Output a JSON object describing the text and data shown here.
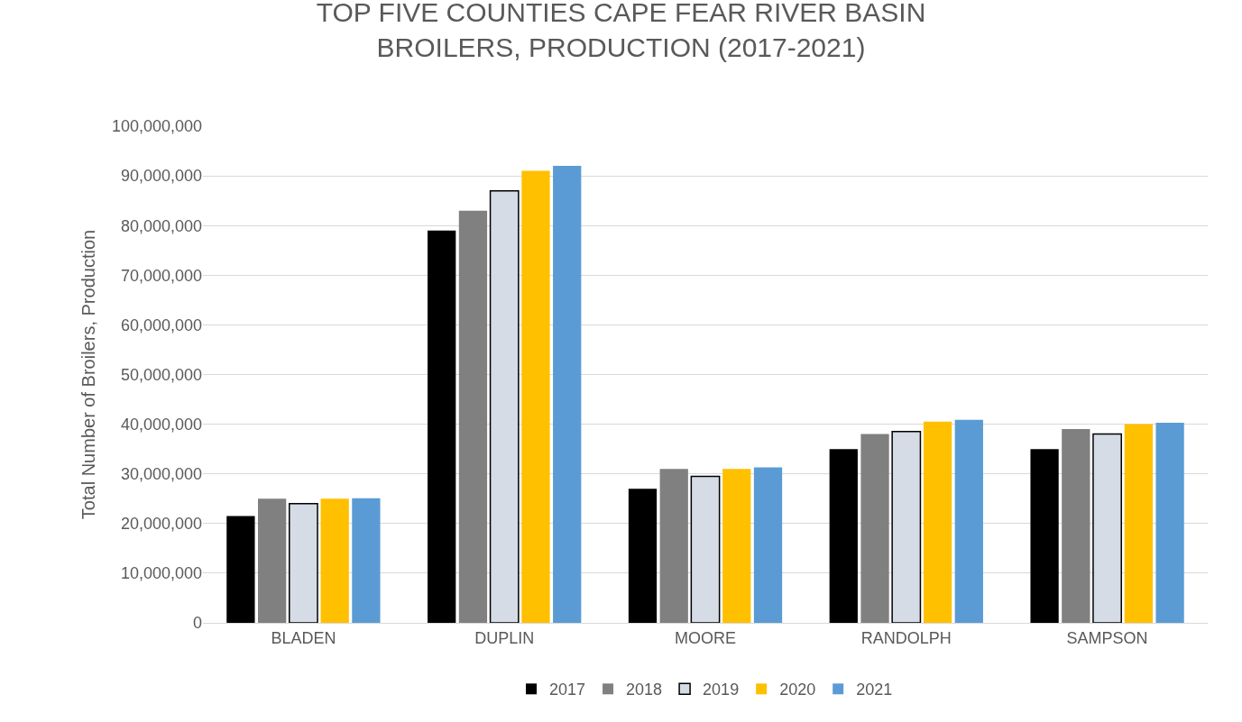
{
  "chart_data": {
    "type": "bar",
    "title": "TOP FIVE COUNTIES CAPE FEAR RIVER BASIN\nBROILERS, PRODUCTION (2017-2021)",
    "ylabel": "Total Number of Broilers, Production",
    "categories": [
      "BLADEN",
      "DUPLIN",
      "MOORE",
      "RANDOLPH",
      "SAMPSON"
    ],
    "series": [
      {
        "name": "2017",
        "color": "#000000",
        "values": [
          21500000,
          79000000,
          27000000,
          35000000,
          35000000
        ]
      },
      {
        "name": "2018",
        "color": "#808080",
        "values": [
          25000000,
          83000000,
          31000000,
          38000000,
          39000000
        ]
      },
      {
        "name": "2019",
        "color": "#d6dce5",
        "values": [
          24000000,
          87000000,
          29500000,
          38500000,
          38000000
        ]
      },
      {
        "name": "2020",
        "color": "#ffc000",
        "values": [
          25000000,
          91000000,
          31000000,
          40500000,
          40000000
        ]
      },
      {
        "name": "2021",
        "color": "#5b9bd5",
        "values": [
          25100000,
          92000000,
          31300000,
          40900000,
          40300000
        ]
      }
    ],
    "ylim": [
      0,
      100000000
    ],
    "yticks": [
      {
        "value": 0,
        "label": "0"
      },
      {
        "value": 10000000,
        "label": "10,000,000"
      },
      {
        "value": 20000000,
        "label": "20,000,000"
      },
      {
        "value": 30000000,
        "label": "30,000,000"
      },
      {
        "value": 40000000,
        "label": "40,000,000"
      },
      {
        "value": 50000000,
        "label": "50,000,000"
      },
      {
        "value": 60000000,
        "label": "60,000,000"
      },
      {
        "value": 70000000,
        "label": "70,000,000"
      },
      {
        "value": 80000000,
        "label": "80,000,000"
      },
      {
        "value": 90000000,
        "label": "90,000,000"
      },
      {
        "value": 100000000,
        "label": "100,000,000"
      }
    ],
    "grid": "y",
    "legend": "bottom"
  }
}
